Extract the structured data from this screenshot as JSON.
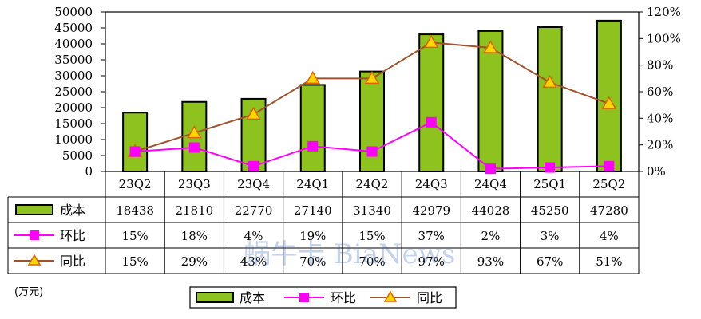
{
  "chart_data": {
    "type": "bar",
    "categories": [
      "23Q2",
      "23Q3",
      "23Q4",
      "24Q1",
      "24Q2",
      "24Q3",
      "24Q4",
      "25Q1",
      "25Q2"
    ],
    "series": [
      {
        "name": "成本",
        "type": "bar",
        "axis": "left",
        "values": [
          18438,
          21810,
          22770,
          27140,
          31340,
          42979,
          44028,
          45250,
          47280
        ],
        "labels": [
          "18438",
          "21810",
          "22770",
          "27140",
          "31340",
          "42979",
          "44028",
          "45250",
          "47280"
        ],
        "color": "#8dc21f"
      },
      {
        "name": "环比",
        "type": "line",
        "axis": "right",
        "values": [
          15,
          18,
          4,
          19,
          15,
          37,
          2,
          3,
          4
        ],
        "labels": [
          "15%",
          "18%",
          "4%",
          "19%",
          "15%",
          "37%",
          "2%",
          "3%",
          "4%"
        ],
        "color": "#ff00ff"
      },
      {
        "name": "同比",
        "type": "line",
        "axis": "right",
        "values": [
          15,
          29,
          43,
          70,
          70,
          97,
          93,
          67,
          51
        ],
        "labels": [
          "15%",
          "29%",
          "43%",
          "70%",
          "70%",
          "97%",
          "93%",
          "67%",
          "51%"
        ],
        "color": "#a0522d"
      }
    ],
    "ylim_left": [
      0,
      50000
    ],
    "ylim_right": [
      0,
      120
    ],
    "yticks_left": [
      "0",
      "5000",
      "10000",
      "15000",
      "20000",
      "25000",
      "30000",
      "35000",
      "40000",
      "45000",
      "50000"
    ],
    "yticks_right": [
      "0%",
      "20%",
      "40%",
      "60%",
      "80%",
      "100%",
      "120%"
    ],
    "unit_label": "(万元)",
    "legend_position": "bottom",
    "grid": false,
    "data_table": true
  },
  "watermark": "蜗牛卡 BiaNews"
}
